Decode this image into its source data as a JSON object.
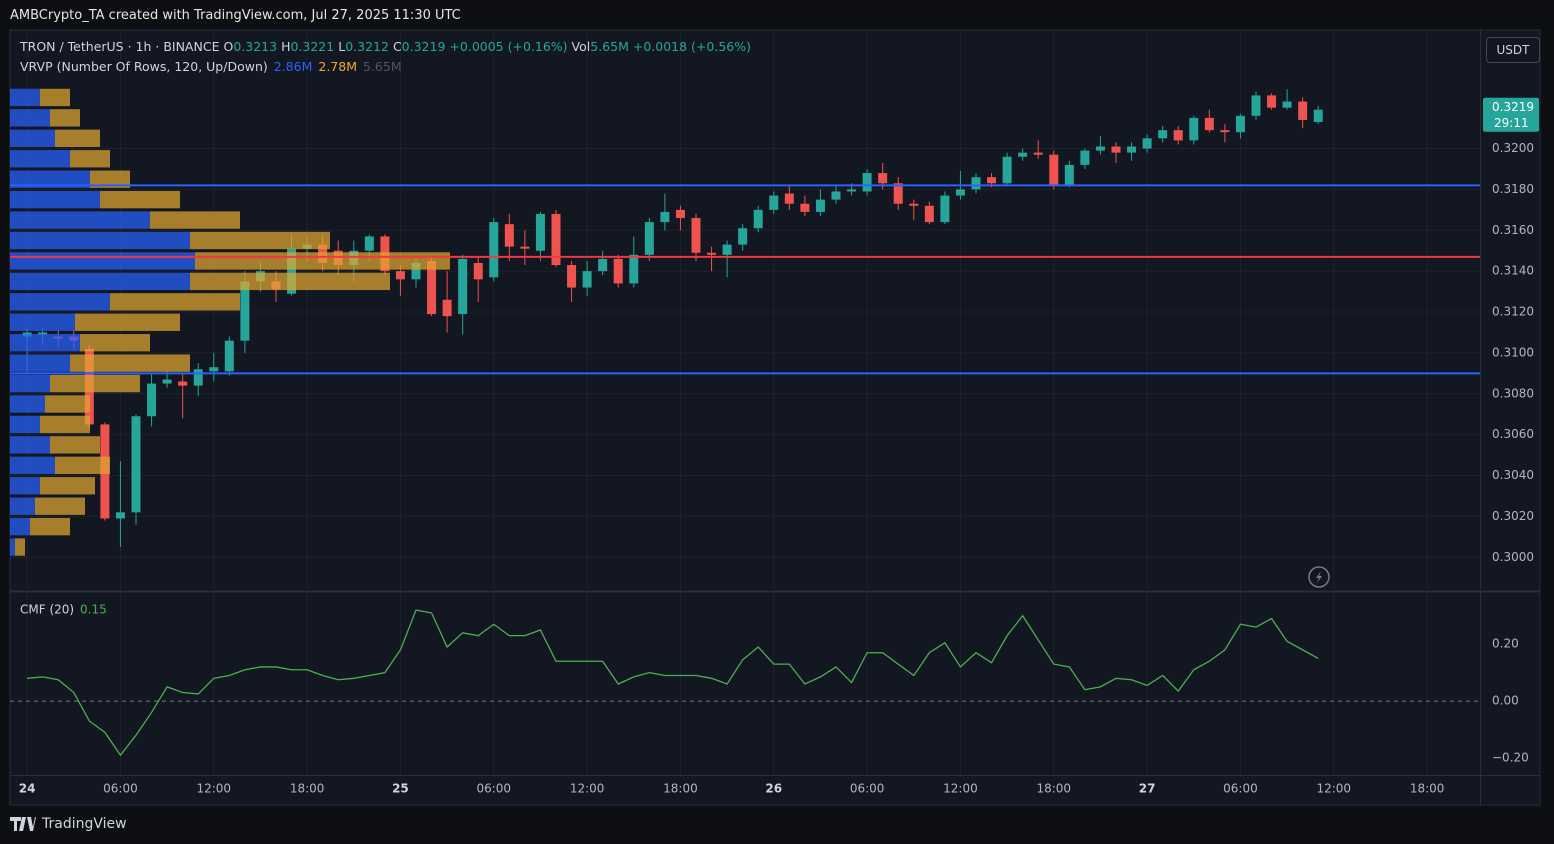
{
  "header": {
    "credit": "AMBCrypto_TA created with TradingView.com, Jul 27, 2025 11:30 UTC",
    "currency_button": "USDT"
  },
  "footer": {
    "brand": "TradingView"
  },
  "chart_data": [
    {
      "type": "candlestick",
      "title": "TRON / TetherUS · 1h · BINANCE",
      "legend": [
        {
          "label": "O",
          "value": "0.3213"
        },
        {
          "label": "H",
          "value": "0.3221"
        },
        {
          "label": "L",
          "value": "0.3212"
        },
        {
          "label": "C",
          "value": "0.3219"
        },
        {
          "label": "",
          "value": "+0.0005 (+0.16%)"
        },
        {
          "label": "Vol",
          "value": "5.65M"
        },
        {
          "label": "",
          "value": "+0.0018 (+0.56%)"
        }
      ],
      "indicator": {
        "name": "VRVP (Number Of Rows, 120, Up/Down)",
        "up_total": "2.86M",
        "down_total": "2.78M",
        "total": "5.65M"
      },
      "countdown": "29:11",
      "up_color": "#26a69a",
      "down_color": "#ef5350",
      "open": [
        0.3108,
        0.3109,
        0.3108,
        0.3108,
        0.3102,
        0.3065,
        0.3019,
        0.3022,
        0.3069,
        0.3085,
        0.3086,
        0.3084,
        0.3091,
        0.3091,
        0.3106,
        0.3135,
        0.3135,
        0.3129,
        0.3151,
        0.3153,
        0.315,
        0.3143,
        0.315,
        0.3157,
        0.314,
        0.3136,
        0.3145,
        0.3126,
        0.3119,
        0.3144,
        0.3137,
        0.3163,
        0.3152,
        0.315,
        0.3168,
        0.3143,
        0.3132,
        0.314,
        0.3146,
        0.3134,
        0.3148,
        0.3164,
        0.317,
        0.3166,
        0.3149,
        0.3148,
        0.3153,
        0.3161,
        0.317,
        0.3178,
        0.3173,
        0.3169,
        0.3175,
        0.3179,
        0.3179,
        0.3188,
        0.3183,
        0.3173,
        0.3172,
        0.3164,
        0.3177,
        0.318,
        0.3186,
        0.3183,
        0.3196,
        0.3198,
        0.3197,
        0.3182,
        0.3192,
        0.3199,
        0.3201,
        0.3198,
        0.32,
        0.3205,
        0.3209,
        0.3204,
        0.3215,
        0.3209,
        0.3208,
        0.3216,
        0.3226,
        0.322,
        0.3223,
        0.3213
      ],
      "high": [
        0.3112,
        0.3112,
        0.3111,
        0.3111,
        0.3104,
        0.3066,
        0.3047,
        0.307,
        0.309,
        0.3091,
        0.309,
        0.3095,
        0.31,
        0.3108,
        0.314,
        0.3145,
        0.314,
        0.3158,
        0.3157,
        0.3158,
        0.3155,
        0.3155,
        0.3158,
        0.3158,
        0.3143,
        0.3147,
        0.3147,
        0.314,
        0.3148,
        0.3147,
        0.3166,
        0.3168,
        0.316,
        0.3169,
        0.317,
        0.3145,
        0.3145,
        0.315,
        0.3148,
        0.3157,
        0.3166,
        0.3178,
        0.3172,
        0.3168,
        0.3152,
        0.3155,
        0.3163,
        0.3172,
        0.3179,
        0.3182,
        0.3177,
        0.318,
        0.3182,
        0.3183,
        0.319,
        0.3193,
        0.3186,
        0.3175,
        0.3174,
        0.3179,
        0.3189,
        0.3188,
        0.3188,
        0.3198,
        0.32,
        0.3204,
        0.3199,
        0.3194,
        0.32,
        0.3206,
        0.3203,
        0.3203,
        0.3207,
        0.3211,
        0.3211,
        0.3216,
        0.3219,
        0.3212,
        0.3217,
        0.3228,
        0.3227,
        0.3229,
        0.3225,
        0.3221
      ],
      "low": [
        0.309,
        0.3104,
        0.3103,
        0.3102,
        0.3063,
        0.3018,
        0.3005,
        0.3016,
        0.3064,
        0.3083,
        0.3068,
        0.3079,
        0.3086,
        0.3089,
        0.31,
        0.313,
        0.3125,
        0.3128,
        0.3145,
        0.314,
        0.3138,
        0.3135,
        0.3145,
        0.3138,
        0.3128,
        0.3132,
        0.3118,
        0.311,
        0.3109,
        0.3125,
        0.3135,
        0.3145,
        0.3143,
        0.3145,
        0.3142,
        0.3125,
        0.3128,
        0.3138,
        0.3132,
        0.3132,
        0.3145,
        0.316,
        0.316,
        0.3145,
        0.314,
        0.3137,
        0.315,
        0.3159,
        0.3168,
        0.317,
        0.3167,
        0.3167,
        0.3173,
        0.3177,
        0.3177,
        0.318,
        0.317,
        0.3165,
        0.3163,
        0.3163,
        0.3175,
        0.3178,
        0.3181,
        0.3182,
        0.3194,
        0.3195,
        0.318,
        0.3181,
        0.319,
        0.3197,
        0.3193,
        0.3194,
        0.3198,
        0.3203,
        0.3202,
        0.3202,
        0.3208,
        0.3203,
        0.3205,
        0.3214,
        0.3219,
        0.3219,
        0.321,
        0.3212
      ],
      "close": [
        0.311,
        0.311,
        0.3107,
        0.3106,
        0.3065,
        0.3019,
        0.3022,
        0.3069,
        0.3085,
        0.3087,
        0.3084,
        0.3092,
        0.3093,
        0.3106,
        0.3135,
        0.314,
        0.3131,
        0.3151,
        0.3153,
        0.3144,
        0.3143,
        0.315,
        0.3157,
        0.314,
        0.3136,
        0.3144,
        0.3119,
        0.3118,
        0.3146,
        0.3136,
        0.3164,
        0.3152,
        0.3151,
        0.3168,
        0.3143,
        0.3132,
        0.314,
        0.3146,
        0.3134,
        0.3148,
        0.3164,
        0.3169,
        0.3166,
        0.3149,
        0.3148,
        0.3153,
        0.3161,
        0.317,
        0.3177,
        0.3173,
        0.3169,
        0.3175,
        0.3179,
        0.318,
        0.3188,
        0.3183,
        0.3173,
        0.3172,
        0.3164,
        0.3177,
        0.318,
        0.3186,
        0.3183,
        0.3196,
        0.3198,
        0.3197,
        0.3182,
        0.3192,
        0.3199,
        0.3201,
        0.3198,
        0.3201,
        0.3205,
        0.3209,
        0.3204,
        0.3215,
        0.3209,
        0.3208,
        0.3216,
        0.3226,
        0.322,
        0.3223,
        0.3214,
        0.3219
      ],
      "xlim": [
        -1.1,
        93.4
      ],
      "xticks": [
        {
          "value": 0,
          "label": "24"
        },
        {
          "value": 6,
          "label": "06:00"
        },
        {
          "value": 12,
          "label": "12:00"
        },
        {
          "value": 18,
          "label": "18:00"
        },
        {
          "value": 24,
          "label": "25"
        },
        {
          "value": 30,
          "label": "06:00"
        },
        {
          "value": 36,
          "label": "12:00"
        },
        {
          "value": 42,
          "label": "18:00"
        },
        {
          "value": 48,
          "label": "26"
        },
        {
          "value": 54,
          "label": "06:00"
        },
        {
          "value": 60,
          "label": "12:00"
        },
        {
          "value": 66,
          "label": "18:00"
        },
        {
          "value": 72,
          "label": "27"
        },
        {
          "value": 78,
          "label": "06:00"
        },
        {
          "value": 84,
          "label": "12:00"
        },
        {
          "value": 90,
          "label": "18:00"
        }
      ],
      "ylim": [
        0.2984,
        0.3258
      ],
      "yticks": [
        {
          "value": 0.3,
          "label": "0.3000"
        },
        {
          "value": 0.302,
          "label": "0.3020"
        },
        {
          "value": 0.304,
          "label": "0.3040"
        },
        {
          "value": 0.306,
          "label": "0.3060"
        },
        {
          "value": 0.308,
          "label": "0.3080"
        },
        {
          "value": 0.31,
          "label": "0.3100"
        },
        {
          "value": 0.312,
          "label": "0.3120"
        },
        {
          "value": 0.314,
          "label": "0.3140"
        },
        {
          "value": 0.316,
          "label": "0.3160"
        },
        {
          "value": 0.318,
          "label": "0.3180"
        },
        {
          "value": 0.32,
          "label": "0.3200"
        }
      ],
      "grid": true,
      "levels": [
        {
          "value": 0.3182,
          "color": "#2962ff"
        },
        {
          "value": 0.3147,
          "color": "#f23645"
        },
        {
          "value": 0.309,
          "color": "#2962ff"
        }
      ],
      "volume_profile": {
        "up_color": "#2962ff",
        "down_color": "#e0a631",
        "prices": [
          0.3225,
          0.3215,
          0.3205,
          0.3195,
          0.3185,
          0.3175,
          0.3165,
          0.3155,
          0.3145,
          0.3135,
          0.3125,
          0.3115,
          0.3105,
          0.3095,
          0.3085,
          0.3075,
          0.3065,
          0.3055,
          0.3045,
          0.3035,
          0.3025,
          0.3015,
          0.3005
        ],
        "up": [
          30,
          40,
          45,
          60,
          80,
          90,
          140,
          180,
          185,
          180,
          100,
          65,
          70,
          60,
          40,
          35,
          30,
          40,
          45,
          30,
          25,
          20,
          5
        ],
        "down": [
          30,
          30,
          45,
          40,
          40,
          80,
          90,
          140,
          255,
          200,
          130,
          105,
          70,
          120,
          90,
          45,
          50,
          50,
          55,
          55,
          50,
          40,
          10
        ]
      }
    },
    {
      "type": "line",
      "title": "CMF (20)",
      "color": "#4caf50",
      "values": [
        0.08,
        0.085,
        0.075,
        0.03,
        -0.07,
        -0.11,
        -0.19,
        -0.12,
        -0.04,
        0.05,
        0.03,
        0.025,
        0.08,
        0.09,
        0.11,
        0.12,
        0.12,
        0.11,
        0.11,
        0.09,
        0.075,
        0.08,
        0.09,
        0.1,
        0.18,
        0.32,
        0.31,
        0.19,
        0.24,
        0.23,
        0.27,
        0.23,
        0.23,
        0.25,
        0.14,
        0.14,
        0.14,
        0.14,
        0.06,
        0.085,
        0.1,
        0.09,
        0.09,
        0.09,
        0.08,
        0.06,
        0.145,
        0.19,
        0.13,
        0.13,
        0.06,
        0.085,
        0.12,
        0.065,
        0.17,
        0.17,
        0.13,
        0.09,
        0.17,
        0.205,
        0.12,
        0.17,
        0.135,
        0.23,
        0.3,
        0.215,
        0.13,
        0.12,
        0.04,
        0.05,
        0.08,
        0.075,
        0.055,
        0.09,
        0.035,
        0.11,
        0.14,
        0.18,
        0.27,
        0.26,
        0.29,
        0.21,
        0.18,
        0.15
      ],
      "ylim": [
        -0.26,
        0.38
      ],
      "yticks": [
        {
          "value": 0.2,
          "label": "0.20"
        },
        {
          "value": 0,
          "label": "0.00"
        },
        {
          "value": -0.2,
          "label": "−0.20"
        }
      ],
      "baseline": 0
    }
  ]
}
